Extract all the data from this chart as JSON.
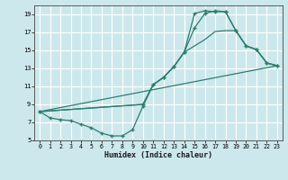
{
  "xlabel": "Humidex (Indice chaleur)",
  "bg_color": "#cce8ed",
  "grid_color": "#ffffff",
  "line_color": "#2e7d6e",
  "xlim": [
    -0.5,
    23.5
  ],
  "ylim": [
    5,
    20
  ],
  "xticks": [
    0,
    1,
    2,
    3,
    4,
    5,
    6,
    7,
    8,
    9,
    10,
    11,
    12,
    13,
    14,
    15,
    16,
    17,
    18,
    19,
    20,
    21,
    22,
    23
  ],
  "yticks": [
    5,
    7,
    9,
    11,
    13,
    15,
    17,
    19
  ],
  "curve1_x": [
    0,
    1,
    2,
    3,
    4,
    5,
    6,
    7,
    8,
    9,
    10,
    11,
    12,
    13,
    14,
    15,
    16,
    17,
    18,
    19,
    20,
    21,
    22,
    23
  ],
  "curve1_y": [
    8.2,
    7.5,
    7.3,
    7.2,
    6.8,
    6.4,
    5.8,
    5.5,
    5.5,
    6.2,
    8.8,
    11.2,
    12.0,
    13.2,
    14.8,
    17.5,
    19.1,
    19.4,
    19.3,
    17.2,
    15.5,
    15.1,
    13.6,
    13.3
  ],
  "curve2_x": [
    0,
    10,
    11,
    12,
    13,
    14,
    15,
    16,
    17,
    18,
    19,
    20,
    21,
    22,
    23
  ],
  "curve2_y": [
    8.2,
    9.0,
    11.2,
    12.0,
    13.2,
    14.8,
    15.5,
    16.2,
    17.1,
    17.2,
    17.2,
    15.5,
    15.1,
    13.6,
    13.3
  ],
  "curve3_x": [
    0,
    23
  ],
  "curve3_y": [
    8.2,
    13.3
  ],
  "curve4_x": [
    0,
    10,
    11,
    12,
    13,
    14,
    15,
    16,
    17,
    18,
    19,
    20,
    21,
    22,
    23
  ],
  "curve4_y": [
    8.2,
    9.0,
    11.2,
    12.0,
    13.2,
    14.8,
    19.1,
    19.4,
    19.3,
    19.3,
    17.2,
    15.5,
    15.1,
    13.6,
    13.3
  ]
}
